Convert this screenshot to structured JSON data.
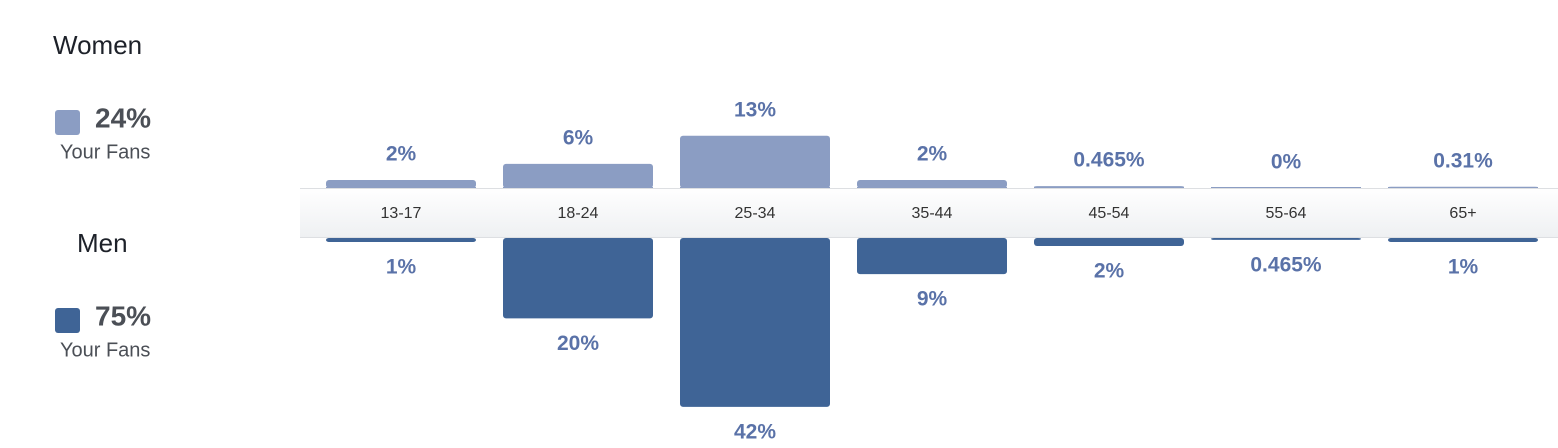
{
  "chart_data": {
    "type": "mirrored-bar",
    "categories": [
      "13-17",
      "18-24",
      "25-34",
      "35-44",
      "45-54",
      "55-64",
      "65+"
    ],
    "series": [
      {
        "name": "Women",
        "color": "#8b9dc3",
        "share": "24%",
        "share_note": "Your Fans",
        "values": [
          2,
          6,
          13,
          2,
          0.465,
          0,
          0.31
        ],
        "value_labels": [
          "2%",
          "6%",
          "13%",
          "2%",
          "0.465%",
          "0%",
          "0.31%"
        ]
      },
      {
        "name": "Men",
        "color": "#3f6496",
        "share": "75%",
        "share_note": "Your Fans",
        "values": [
          1,
          20,
          42,
          9,
          2,
          0.465,
          1
        ],
        "value_labels": [
          "1%",
          "20%",
          "42%",
          "9%",
          "2%",
          "0.465%",
          "1%"
        ]
      }
    ]
  }
}
